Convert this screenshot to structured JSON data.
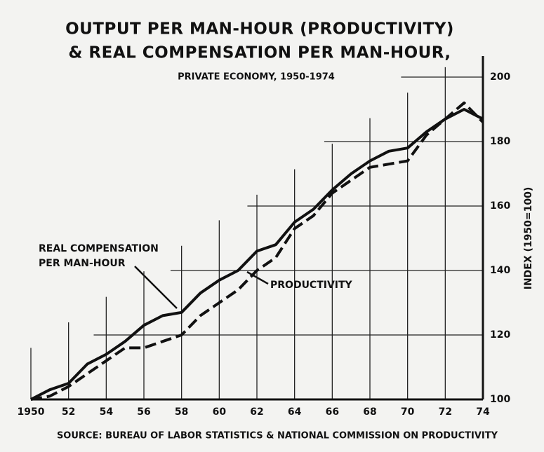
{
  "chart_data": {
    "type": "line",
    "title": [
      "OUTPUT PER MAN-HOUR (PRODUCTIVITY)",
      "& REAL COMPENSATION PER MAN-HOUR,"
    ],
    "subtitle": "PRIVATE ECONOMY, 1950-1974",
    "y_axis_label": "INDEX (1950=100)",
    "source": "SOURCE: BUREAU OF LABOR STATISTICS & NATIONAL COMMISSION ON PRODUCTIVITY",
    "annotations": [
      "REAL COMPENSATION",
      "PER MAN-HOUR",
      "PRODUCTIVITY"
    ],
    "x": [
      1950,
      1951,
      1952,
      1953,
      1954,
      1955,
      1956,
      1957,
      1958,
      1959,
      1960,
      1961,
      1962,
      1963,
      1964,
      1965,
      1966,
      1967,
      1968,
      1969,
      1970,
      1971,
      1972,
      1973,
      1974
    ],
    "series": [
      {
        "name": "REAL COMPENSATION PER MAN-HOUR",
        "color": "#111111",
        "style": "solid",
        "values": [
          100,
          103,
          105,
          111,
          114,
          118,
          123,
          126,
          127,
          133,
          137,
          140,
          146,
          148,
          155,
          159,
          165,
          170,
          174,
          177,
          178,
          183,
          187,
          190,
          187
        ]
      },
      {
        "name": "PRODUCTIVITY",
        "color": "#111111",
        "style": "dashed",
        "values": [
          100,
          101,
          104,
          108,
          112,
          116,
          116,
          118,
          120,
          126,
          130,
          134,
          140,
          144,
          153,
          157,
          164,
          168,
          172,
          173,
          174,
          182,
          187,
          192,
          186
        ]
      }
    ],
    "xlim": [
      1950,
      1974
    ],
    "xticks": [
      {
        "value": 1950,
        "label": "1950"
      },
      {
        "value": 1952,
        "label": "52"
      },
      {
        "value": 1954,
        "label": "54"
      },
      {
        "value": 1956,
        "label": "56"
      },
      {
        "value": 1958,
        "label": "58"
      },
      {
        "value": 1960,
        "label": "60"
      },
      {
        "value": 1962,
        "label": "62"
      },
      {
        "value": 1964,
        "label": "64"
      },
      {
        "value": 1966,
        "label": "66"
      },
      {
        "value": 1968,
        "label": "68"
      },
      {
        "value": 1970,
        "label": "70"
      },
      {
        "value": 1972,
        "label": "72"
      },
      {
        "value": 1974,
        "label": "74"
      }
    ],
    "ylim": [
      100,
      200
    ],
    "yticks": [
      100,
      120,
      140,
      160,
      180,
      200
    ],
    "y_axis_side": "right",
    "grid": true
  }
}
